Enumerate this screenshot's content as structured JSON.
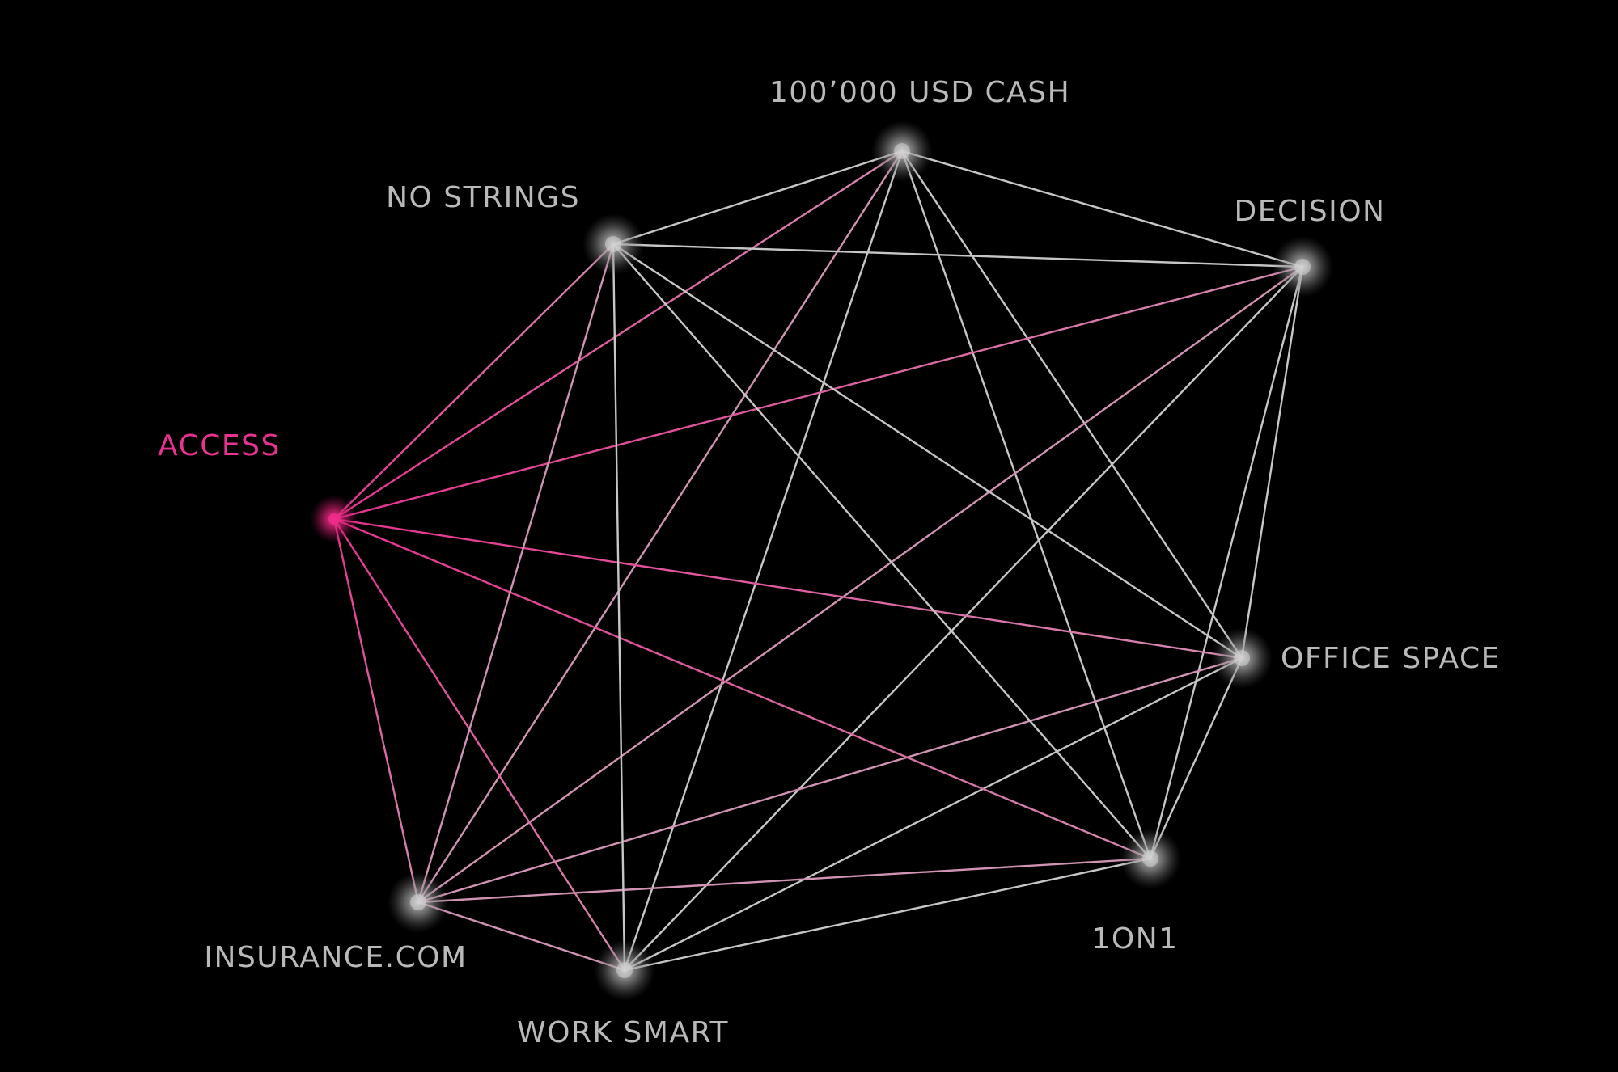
{
  "colors": {
    "background": "#000000",
    "edge_default": "#c6c6c6",
    "edge_highlight": "#e6338f",
    "node_default": "#d4d4d4",
    "node_highlight": "#ee2a8a",
    "label_default": "#b9b9b9",
    "label_highlight": "#e6338f"
  },
  "highlighted_node": "access",
  "nodes": [
    {
      "id": "cash",
      "label": "100’000 USD CASH"
    },
    {
      "id": "decision",
      "label": "DECISION"
    },
    {
      "id": "office",
      "label": "OFFICE SPACE"
    },
    {
      "id": "oneonone",
      "label": "1ON1"
    },
    {
      "id": "worksmart",
      "label": "WORK SMART"
    },
    {
      "id": "insurance",
      "label": "INSURANCE.COM"
    },
    {
      "id": "access",
      "label": "ACCESS"
    },
    {
      "id": "nostrings",
      "label": "NO STRINGS"
    }
  ],
  "edges": [
    [
      "cash",
      "decision"
    ],
    [
      "cash",
      "office"
    ],
    [
      "cash",
      "oneonone"
    ],
    [
      "cash",
      "worksmart"
    ],
    [
      "cash",
      "insurance"
    ],
    [
      "cash",
      "access"
    ],
    [
      "cash",
      "nostrings"
    ],
    [
      "decision",
      "office"
    ],
    [
      "decision",
      "oneonone"
    ],
    [
      "decision",
      "worksmart"
    ],
    [
      "decision",
      "insurance"
    ],
    [
      "decision",
      "access"
    ],
    [
      "decision",
      "nostrings"
    ],
    [
      "office",
      "oneonone"
    ],
    [
      "office",
      "worksmart"
    ],
    [
      "office",
      "insurance"
    ],
    [
      "office",
      "access"
    ],
    [
      "office",
      "nostrings"
    ],
    [
      "oneonone",
      "worksmart"
    ],
    [
      "oneonone",
      "insurance"
    ],
    [
      "oneonone",
      "access"
    ],
    [
      "oneonone",
      "nostrings"
    ],
    [
      "worksmart",
      "insurance"
    ],
    [
      "worksmart",
      "access"
    ],
    [
      "worksmart",
      "nostrings"
    ],
    [
      "insurance",
      "access"
    ],
    [
      "insurance",
      "nostrings"
    ],
    [
      "access",
      "nostrings"
    ]
  ]
}
